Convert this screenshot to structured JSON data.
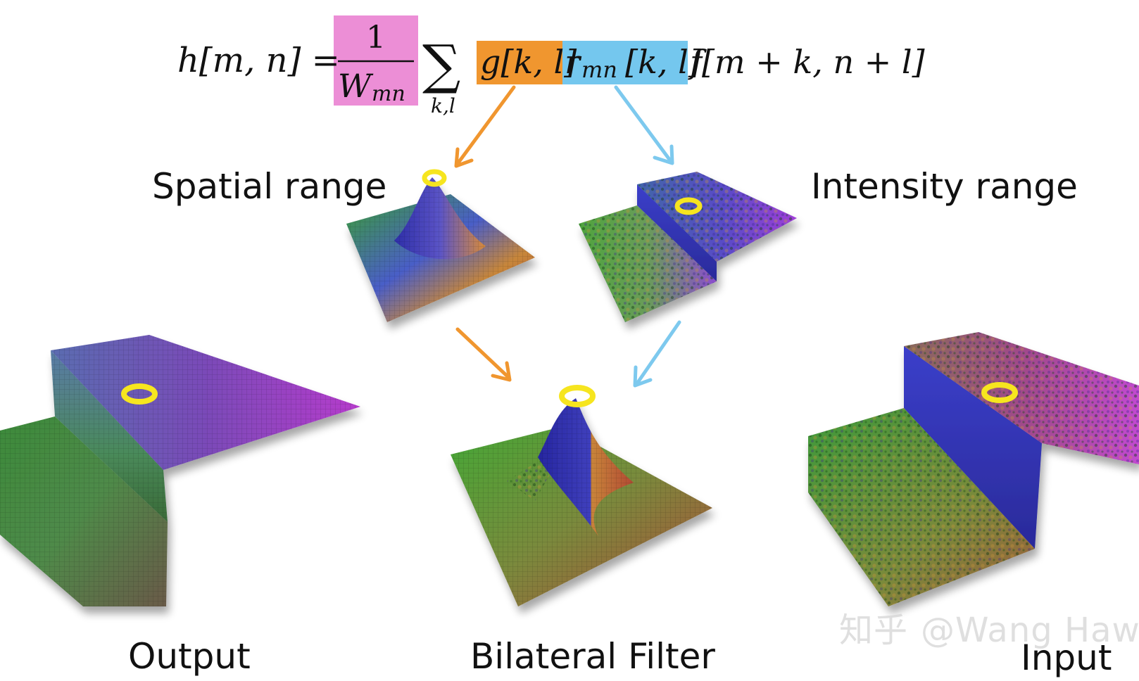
{
  "formula": {
    "lhs": "h[m, n] =",
    "fraction_numerator": "1",
    "fraction_denominator": "W",
    "fraction_denominator_sub": "mn",
    "sum_symbol": "∑",
    "sum_subscript": "k,l",
    "spatial_term": "g[k, l]",
    "range_term_main": "r",
    "range_term_sub": "mn",
    "range_term_args": "[k, l]",
    "input_term": "f[m + k, n + l]"
  },
  "labels": {
    "spatial": "Spatial range",
    "intensity": "Intensity range",
    "output": "Output",
    "bilateral": "Bilateral Filter",
    "input": "Input"
  },
  "watermark": {
    "platform": "知乎",
    "author": "@Wang Haw"
  },
  "colors": {
    "normalization_highlight": "#ec8ed6",
    "spatial_highlight": "#f0962f",
    "range_highlight": "#74c7ee",
    "spatial_arrow": "#f0962f",
    "range_arrow": "#7dc9ee",
    "ring": "#f6e51f"
  },
  "icons": {
    "ring": "yellow-ring-icon",
    "arrow": "arrow-icon"
  }
}
